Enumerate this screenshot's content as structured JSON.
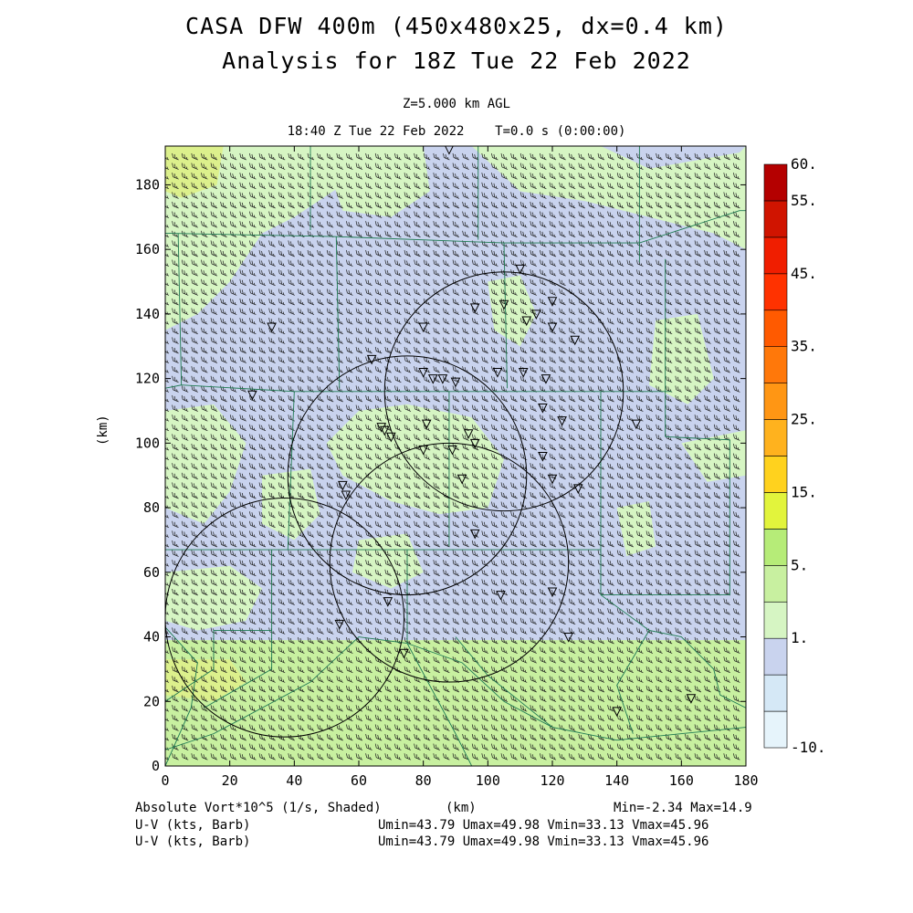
{
  "header": {
    "title_line1": "CASA DFW 400m (450x480x25, dx=0.4 km)",
    "title_line2": "Analysis for 18Z Tue 22 Feb 2022",
    "level": "Z=5.000 km AGL",
    "time": "18:40 Z Tue 22 Feb 2022    T=0.0 s (0:00:00)"
  },
  "axes": {
    "x_ticks": [
      "0",
      "20",
      "40",
      "60",
      "80",
      "100",
      "120",
      "140",
      "160",
      "180"
    ],
    "y_ticks": [
      "0",
      "20",
      "40",
      "60",
      "80",
      "100",
      "120",
      "140",
      "160",
      "180"
    ],
    "x_unit": "(km)",
    "y_unit": "(km)",
    "x_range": [
      0,
      180
    ],
    "y_range": [
      0,
      192
    ]
  },
  "colorbar": {
    "labels": [
      "60.",
      "55.",
      "45.",
      "35.",
      "25.",
      "15.",
      "5.",
      "1.",
      "-10."
    ],
    "colors": [
      "#e6f4fb",
      "#d5e8f6",
      "#c9d3ee",
      "#d6f5c3",
      "#c8f0a0",
      "#b6ec78",
      "#e2f43c",
      "#ffd21e",
      "#ffb21e",
      "#ff9614",
      "#ff780a",
      "#ff5a00",
      "#ff3200",
      "#f01e00",
      "#d01400",
      "#b40000"
    ]
  },
  "footer": {
    "field_label": "Absolute Vort*10^5 (1/s, Shaded)",
    "x_unit": "(km)",
    "minmax": "Min=-2.34 Max=14.9",
    "barb_label1": "U-V (kts, Barb)",
    "barb_stats1": "Umin=43.79 Umax=49.98 Vmin=33.13 Vmax=45.96",
    "barb_label2": "U-V (kts, Barb)",
    "barb_stats2": "Umin=43.79 Umax=49.98 Vmin=33.13 Vmax=45.96"
  },
  "map": {
    "field_colors": {
      "green": "#c8f0a0",
      "blue": "#c9d3ee",
      "lightgreen": "#d6f5c3",
      "yellowgreen": "#dcf08c"
    },
    "radar_rings": [
      {
        "x": 105,
        "y": 116,
        "r": 37
      },
      {
        "x": 75,
        "y": 90,
        "r": 37
      },
      {
        "x": 88,
        "y": 63,
        "r": 37
      },
      {
        "x": 37,
        "y": 46,
        "r": 37
      }
    ],
    "station_markers": [
      [
        88,
        191
      ],
      [
        110,
        154
      ],
      [
        96,
        142
      ],
      [
        105,
        143
      ],
      [
        115,
        140
      ],
      [
        120,
        144
      ],
      [
        112,
        138
      ],
      [
        80,
        136
      ],
      [
        120,
        136
      ],
      [
        127,
        132
      ],
      [
        33,
        136
      ],
      [
        64,
        126
      ],
      [
        80,
        122
      ],
      [
        83,
        120
      ],
      [
        86,
        120
      ],
      [
        90,
        119
      ],
      [
        103,
        122
      ],
      [
        111,
        122
      ],
      [
        118,
        120
      ],
      [
        27,
        115
      ],
      [
        117,
        111
      ],
      [
        123,
        107
      ],
      [
        67,
        105
      ],
      [
        68,
        104
      ],
      [
        70,
        102
      ],
      [
        81,
        106
      ],
      [
        94,
        103
      ],
      [
        96,
        100
      ],
      [
        89,
        98
      ],
      [
        80,
        98
      ],
      [
        117,
        96
      ],
      [
        120,
        89
      ],
      [
        92,
        89
      ],
      [
        128,
        86
      ],
      [
        55,
        87
      ],
      [
        56,
        84
      ],
      [
        146,
        106
      ],
      [
        96,
        72
      ],
      [
        120,
        54
      ],
      [
        104,
        53
      ],
      [
        69,
        51
      ],
      [
        54,
        44
      ],
      [
        125,
        40
      ],
      [
        74,
        35
      ],
      [
        140,
        17
      ],
      [
        163,
        21
      ]
    ]
  }
}
